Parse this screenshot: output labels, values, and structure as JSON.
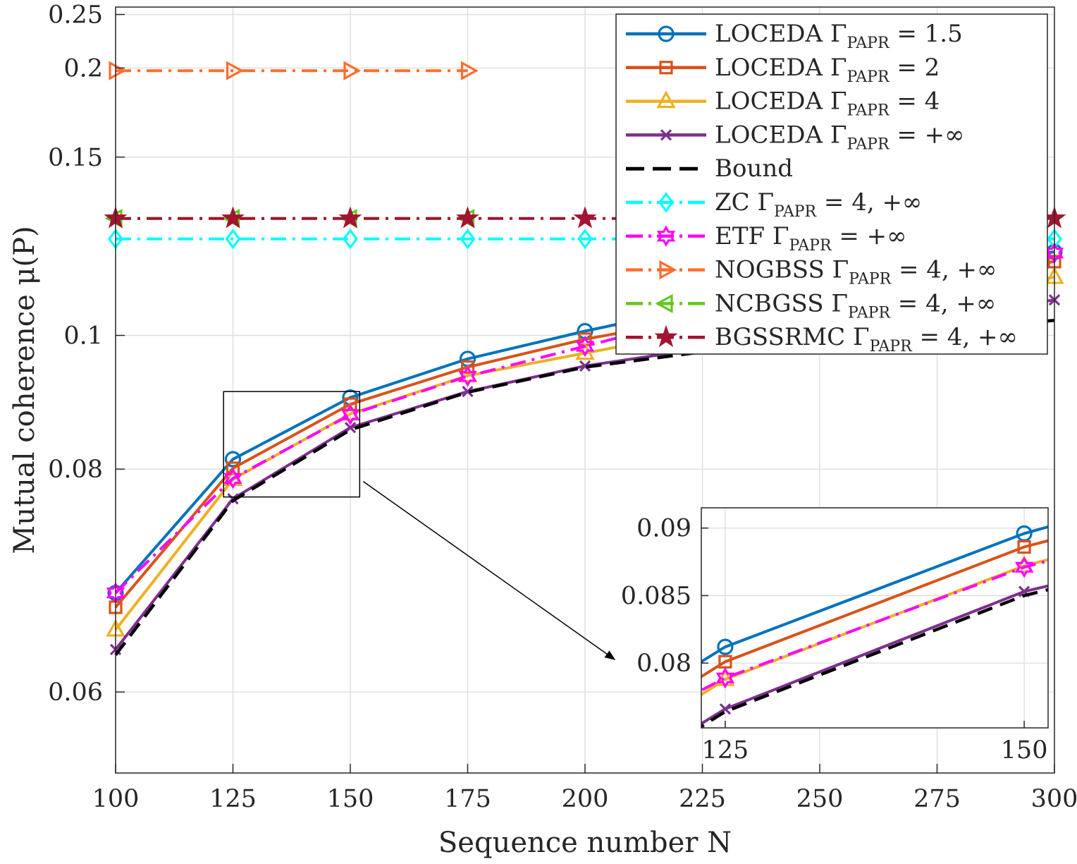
{
  "chart_data": {
    "type": "line",
    "xlabel": "Sequence number N",
    "ylabel": "Mutual coherence μ(P)",
    "xlim": [
      100,
      300
    ],
    "ylim": [
      0.055,
      0.259
    ],
    "y_scale": "reciprocal",
    "grid": true,
    "legend_position": "top-right",
    "x_ticks": [
      "100",
      "125",
      "150",
      "175",
      "200",
      "225",
      "250",
      "275",
      "300"
    ],
    "y_ticks": [
      {
        "value": 0.06,
        "label": "0.06"
      },
      {
        "value": 0.08,
        "label": "0.08"
      },
      {
        "value": 0.1,
        "label": "0.1"
      },
      {
        "value": 0.15,
        "label": "0.15"
      },
      {
        "value": 0.2,
        "label": "0.2"
      },
      {
        "value": 0.25,
        "label": "0.25"
      }
    ],
    "series": [
      {
        "name": "LOCEDA",
        "param": "= 1.5",
        "color": "#0072BD",
        "line": "solid",
        "marker": "circle",
        "x": [
          100,
          125,
          150,
          175,
          200,
          225,
          250,
          275,
          300
        ],
        "y": [
          0.0675,
          0.0812,
          0.0896,
          0.0958,
          0.1008,
          0.1058,
          0.1115,
          0.1158,
          0.1185
        ]
      },
      {
        "name": "LOCEDA",
        "param": "= 2",
        "color": "#D95319",
        "line": "solid",
        "marker": "square",
        "x": [
          100,
          125,
          150,
          175,
          200,
          225,
          250,
          275,
          300
        ],
        "y": [
          0.0663,
          0.0801,
          0.0886,
          0.0944,
          0.0993,
          0.1034,
          0.1076,
          0.1118,
          0.116
        ]
      },
      {
        "name": "LOCEDA",
        "param": "= 4",
        "color": "#EDB120",
        "line": "solid",
        "marker": "triangle-up",
        "x": [
          100,
          125,
          150,
          175,
          200,
          225,
          250,
          275,
          300
        ],
        "y": [
          0.0645,
          0.0788,
          0.0872,
          0.093,
          0.0968,
          0.1008,
          0.1045,
          0.1082,
          0.1122
        ]
      },
      {
        "name": "LOCEDA",
        "param": "= +∞",
        "color": "#7E2F8E",
        "line": "solid",
        "marker": "x",
        "x": [
          100,
          125,
          150,
          175,
          200,
          225,
          250,
          275,
          300
        ],
        "y": [
          0.063,
          0.0766,
          0.0853,
          0.0905,
          0.0946,
          0.0976,
          0.1008,
          0.1038,
          0.1071
        ]
      },
      {
        "name": "Bound",
        "param": "",
        "color": "#000000",
        "line": "dashed",
        "marker": "none",
        "x": [
          100,
          125,
          150,
          175,
          200,
          225,
          250,
          275,
          300
        ],
        "y": [
          0.0626,
          0.0764,
          0.085,
          0.0904,
          0.0944,
          0.097,
          0.099,
          0.101,
          0.1029
        ]
      },
      {
        "name": "ZC",
        "param": "= 4, +∞",
        "color": "#00FFFF",
        "line": "dashdot",
        "marker": "diamond",
        "x": [
          100,
          125,
          150,
          175,
          200,
          225,
          250,
          275,
          300
        ],
        "y": [
          0.122,
          0.122,
          0.122,
          0.122,
          0.122,
          0.122,
          0.122,
          0.122,
          0.122
        ]
      },
      {
        "name": "ETF",
        "param": "= +∞",
        "color": "#FF00FF",
        "line": "dashdot",
        "marker": "hexagram",
        "x": [
          100,
          125,
          150,
          175,
          200,
          225,
          250,
          275,
          300
        ],
        "y": [
          0.0675,
          0.0789,
          0.0871,
          0.0929,
          0.098,
          0.1038,
          0.1082,
          0.1133,
          0.1182
        ]
      },
      {
        "name": "NOGBSS",
        "param": "= 4, +∞",
        "color": "#FF6D2E",
        "line": "dashdot",
        "marker": "triangle-right",
        "x": [
          100,
          125,
          150,
          175
        ],
        "y": [
          0.198,
          0.198,
          0.198,
          0.198
        ]
      },
      {
        "name": "NCBGSS",
        "param": "= 4, +∞",
        "color": "#63C621",
        "line": "dashdot",
        "marker": "triangle-left",
        "x": [
          100,
          125,
          150,
          175
        ],
        "y": [
          0.128,
          0.128,
          0.128,
          0.128
        ]
      },
      {
        "name": "BGSSRMC",
        "param": "= 4, +∞",
        "color": "#A2142F",
        "line": "dashdot",
        "marker": "pentagram",
        "x": [
          100,
          125,
          150,
          175,
          200,
          225,
          250,
          275,
          300
        ],
        "y": [
          0.128,
          0.128,
          0.128,
          0.128,
          0.128,
          0.128,
          0.128,
          0.128,
          0.128
        ]
      }
    ],
    "legend": [
      {
        "name": "LOCEDA",
        "gamma": "Γ",
        "sub": "PAPR",
        "param": "= 1.5"
      },
      {
        "name": "LOCEDA",
        "gamma": "Γ",
        "sub": "PAPR",
        "param": "= 2"
      },
      {
        "name": "LOCEDA",
        "gamma": "Γ",
        "sub": "PAPR",
        "param": "= 4"
      },
      {
        "name": "LOCEDA",
        "gamma": "Γ",
        "sub": "PAPR",
        "param": "= +∞"
      },
      {
        "name": "Bound",
        "gamma": "",
        "sub": "",
        "param": ""
      },
      {
        "name": "ZC",
        "gamma": "Γ",
        "sub": "PAPR",
        "param": "= 4, +∞"
      },
      {
        "name": "ETF",
        "gamma": "Γ",
        "sub": "PAPR",
        "param": "= +∞"
      },
      {
        "name": "NOGBSS",
        "gamma": "Γ",
        "sub": "PAPR",
        "param": "= 4, +∞"
      },
      {
        "name": "NCBGSS",
        "gamma": "Γ",
        "sub": "PAPR",
        "param": "= 4, +∞"
      },
      {
        "name": "BGSSRMC",
        "gamma": "Γ",
        "sub": "PAPR",
        "param": "= 4, +∞"
      }
    ],
    "inset": {
      "xlim": [
        123,
        152
      ],
      "ylim": [
        0.0752,
        0.0915
      ],
      "x_ticks": [
        "125",
        "150"
      ],
      "y_ticks": [
        {
          "value": 0.08,
          "label": "0.08"
        },
        {
          "value": 0.085,
          "label": "0.085"
        },
        {
          "value": 0.09,
          "label": "0.09"
        }
      ],
      "zoom_box": {
        "x": [
          123,
          152
        ],
        "y": [
          0.0768,
          0.0905
        ]
      }
    }
  }
}
